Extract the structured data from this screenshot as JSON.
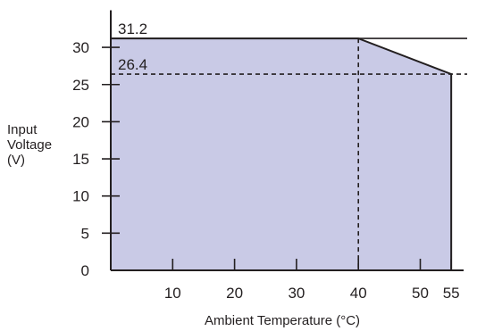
{
  "chart_data": {
    "type": "area",
    "xlabel": "Ambient Temperature (°C)",
    "ylabel_lines": [
      "Input",
      "Voltage",
      "(V)"
    ],
    "xlim": [
      0,
      57
    ],
    "ylim": [
      0,
      35
    ],
    "x_ticks": [
      10,
      20,
      30,
      40,
      50,
      55
    ],
    "y_ticks": [
      0,
      5,
      10,
      15,
      20,
      25,
      30
    ],
    "series": [
      {
        "x": [
          0,
          40,
          55,
          55
        ],
        "y": [
          31.2,
          31.2,
          26.4,
          0
        ]
      }
    ],
    "reference_lines": [
      {
        "value": 31.2,
        "label": "31.2",
        "style": "solid"
      },
      {
        "value": 26.4,
        "label": "26.4",
        "style": "dashed"
      }
    ],
    "vertical_reference_lines": [
      {
        "x": 40,
        "style": "dashed"
      }
    ],
    "fill_color": "#c9cae6",
    "line_color": "#231f20",
    "grid": false
  }
}
